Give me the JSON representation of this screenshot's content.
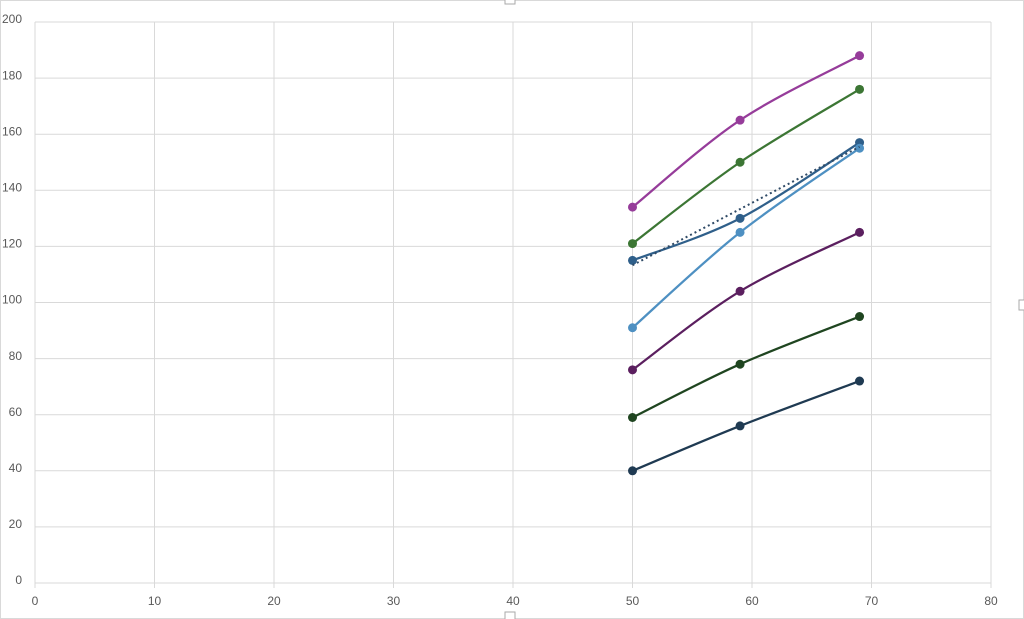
{
  "chart_data": {
    "type": "line",
    "smooth": true,
    "grid": true,
    "x": [
      50,
      59,
      69
    ],
    "xlim": [
      0,
      80
    ],
    "xticks": [
      0,
      10,
      20,
      30,
      40,
      50,
      60,
      70,
      80
    ],
    "ylim": [
      0,
      200
    ],
    "yticks": [
      0,
      20,
      40,
      60,
      80,
      100,
      120,
      140,
      160,
      180,
      200
    ],
    "series": [
      {
        "color": "#963c9a",
        "values": [
          134,
          165,
          188
        ]
      },
      {
        "color": "#3c7634",
        "values": [
          121,
          150,
          176
        ]
      },
      {
        "color": "#2f5f8a",
        "values": [
          115,
          130,
          157
        ]
      },
      {
        "color": "#4e90c2",
        "values": [
          91,
          125,
          155
        ]
      },
      {
        "color": "#5b1f5f",
        "values": [
          76,
          104,
          125
        ]
      },
      {
        "color": "#1f4520",
        "values": [
          59,
          78,
          95
        ]
      },
      {
        "color": "#1f3a52",
        "values": [
          40,
          56,
          72
        ]
      },
      {
        "color": "#2f4a66",
        "dotted": true,
        "markers": false,
        "values": [
          113.3,
          133.3,
          155.5
        ]
      }
    ]
  }
}
